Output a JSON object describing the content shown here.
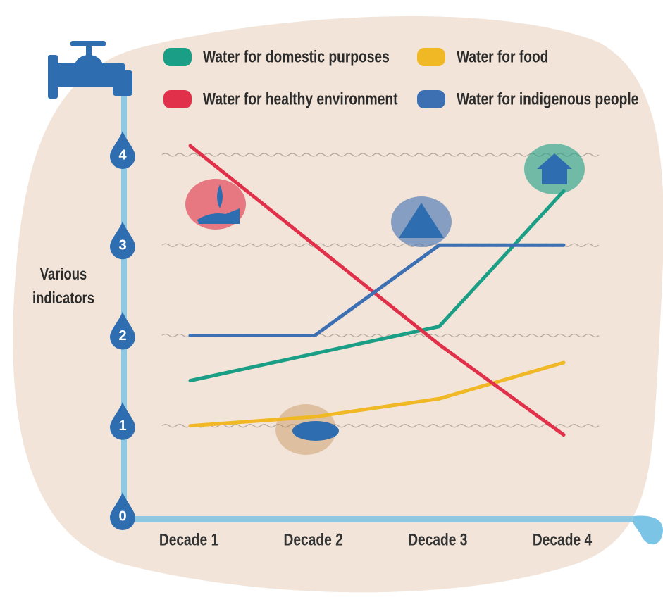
{
  "chart_data": {
    "type": "line",
    "y_label": "Various indicators",
    "categories": [
      "Decade 1",
      "Decade 2",
      "Decade 3",
      "Decade 4"
    ],
    "series": [
      {
        "name": "Water for domestic purposes",
        "color": "#1a9e85",
        "values": [
          1.5,
          1.8,
          2.1,
          3.6
        ]
      },
      {
        "name": "Water for food",
        "color": "#f0b824",
        "values": [
          1.0,
          1.1,
          1.3,
          1.7
        ]
      },
      {
        "name": "Water for healthy environment",
        "color": "#e0304a",
        "values": [
          4.1,
          3.0,
          1.9,
          0.9
        ]
      },
      {
        "name": "Water for indigenous people",
        "color": "#3d6fb3",
        "values": [
          2.0,
          2.0,
          3.0,
          3.0
        ]
      }
    ],
    "ylim": [
      0,
      4
    ],
    "yticks": [
      0,
      1,
      2,
      3,
      4
    ],
    "grid": true
  }
}
